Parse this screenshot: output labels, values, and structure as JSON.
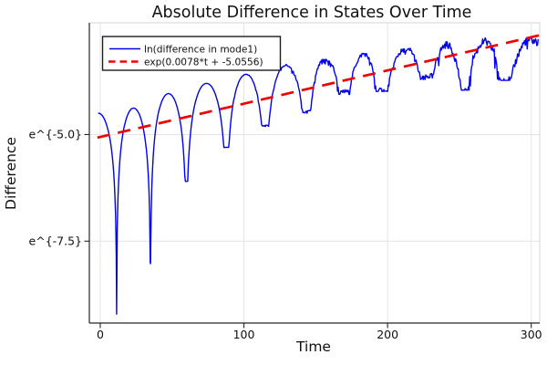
{
  "chart_data": {
    "type": "line",
    "title": "Absolute Difference in States Over Time",
    "xlabel": "Time",
    "ylabel": "Difference",
    "x_ticks": [
      {
        "value": 0,
        "label": "0"
      },
      {
        "value": 100,
        "label": "100"
      },
      {
        "value": 200,
        "label": "200"
      },
      {
        "value": 300,
        "label": "300"
      }
    ],
    "y_ticks": [
      {
        "value": -5.0,
        "label": "e^{-5.0}"
      },
      {
        "value": -7.5,
        "label": "e^{-7.5}"
      }
    ],
    "xlim": [
      -7.6,
      305.9
    ],
    "ylim_ln": [
      -9.42,
      -2.38
    ],
    "y_scale": "log (labels show e^x)",
    "grid": true,
    "legend": {
      "position": "top-left",
      "entries": [
        {
          "label": "ln(difference in mode1)",
          "color": "#0000ee",
          "style": "solid"
        },
        {
          "label": "exp(0.0078*t + -5.0556)",
          "color": "#ee0000",
          "style": "dashed"
        }
      ]
    },
    "series": [
      {
        "name": "ln(difference in mode1)",
        "color": "#0000ee",
        "style": "solid",
        "width": 1.4,
        "t_range": [
          -1.5,
          305
        ],
        "model": "oscillating |difference|: rounded arcs in ln-space with sharp downward cusps, envelope growing ~exp(0.0078t); noise grows with t",
        "noise": {
          "start_t": 85,
          "rate": 0.0009,
          "max": 0.17
        },
        "arcs": [
          {
            "t0": -14,
            "t1": 11.4,
            "peak": -4.5,
            "d0": null,
            "d1": -9.21
          },
          {
            "t0": 11.4,
            "t1": 35,
            "peak": -4.38,
            "d0": -9.21,
            "d1": -8.03
          },
          {
            "t0": 35,
            "t1": 60,
            "peak": -4.04,
            "d0": -8.03,
            "d1": -6.1
          },
          {
            "t0": 60,
            "t1": 88,
            "peak": -3.8,
            "d0": -6.1,
            "d1": -5.3
          },
          {
            "t0": 88,
            "t1": 115,
            "peak": -3.58,
            "d0": -5.3,
            "d1": -4.78
          },
          {
            "t0": 115,
            "t1": 144,
            "peak": -3.38,
            "d0": -4.78,
            "d1": -4.46
          },
          {
            "t0": 144,
            "t1": 170,
            "peak": -3.24,
            "d0": -4.46,
            "d1": -4.02
          },
          {
            "t0": 170,
            "t1": 196,
            "peak": -3.12,
            "d0": -4.02,
            "d1": -3.95
          },
          {
            "t0": 196,
            "t1": 228,
            "peak": -2.98,
            "d0": -3.95,
            "d1": -3.67
          },
          {
            "t0": 228,
            "t1": 254,
            "peak": -2.84,
            "d0": -3.67,
            "d1": -3.92
          },
          {
            "t0": 254,
            "t1": 281,
            "peak": -2.72,
            "d0": -3.92,
            "d1": -3.69
          },
          {
            "t0": 281,
            "t1": 322,
            "peak": -2.7,
            "d0": -3.69,
            "d1": null
          }
        ]
      },
      {
        "name": "exp(0.0078*t + -5.0556)",
        "color": "#ee0000",
        "style": "dashed",
        "width": 2.7,
        "model": "linear in ln-space: ln(y) = slope*t + intercept",
        "slope": 0.0078,
        "intercept": -5.0556,
        "t_range": [
          -2,
          308
        ]
      }
    ],
    "colors": {
      "grid": "#e4e4e4",
      "spine": "#262626",
      "frame_light": "#d6d6d6",
      "text": "#101010",
      "background": "#ffffff"
    }
  }
}
